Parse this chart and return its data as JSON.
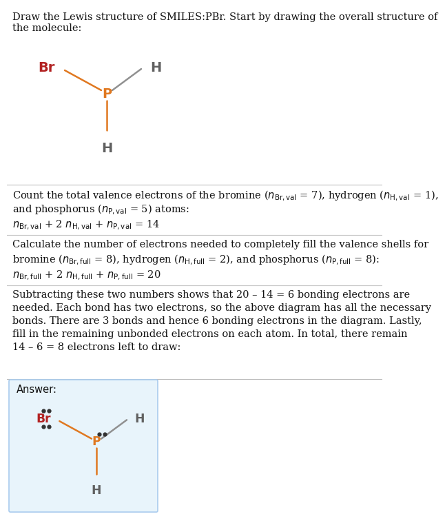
{
  "background_color": "#ffffff",
  "answer_box_color": "#e8f4fb",
  "answer_box_border": "#aaccee",
  "text_color": "#111111",
  "br_color": "#b22222",
  "p_color": "#e07820",
  "h_color": "#606060",
  "bond_color_br": "#e07820",
  "bond_color_h": "#909090",
  "lone_pair_color": "#333333",
  "title_line1": "Draw the Lewis structure of SMILES:PBr. Start by drawing the overall structure of",
  "title_line2": "the molecule:",
  "para1_line1": "Count the total valence electrons of the bromine (",
  "para1_line2": "and phosphorus (",
  "para2_line1": "Calculate the number of electrons needed to completely fill the valence shells for",
  "para2_line2": "bromine (",
  "para3": "Subtracting these two numbers shows that 20 – 14 = 6 bonding electrons are needed. Each bond has two electrons, so the above diagram has all the necessary bonds. There are 3 bonds and hence 6 bonding electrons in the diagram. Lastly, fill in the remaining unbonded electrons on each atom. In total, there remain 14 – 6 = 8 electrons left to draw:",
  "answer_label": "Answer:",
  "font_size": 10.5,
  "eq_font_size": 10.5
}
